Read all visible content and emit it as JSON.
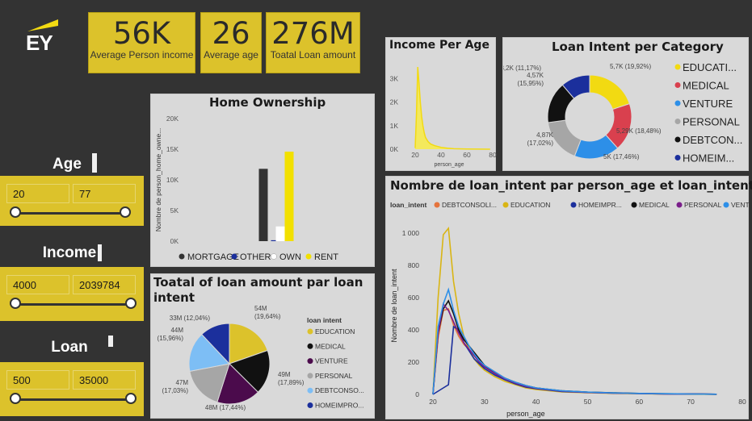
{
  "brand": {
    "logo": "EY",
    "accent": "#DCC22B"
  },
  "kpis": [
    {
      "value": "56K",
      "label": "Average Person income"
    },
    {
      "value": "26",
      "label": "Average age"
    },
    {
      "value": "276M",
      "label": "Toatal Loan amount"
    }
  ],
  "slicers": {
    "age": {
      "label": "Age",
      "min": "20",
      "max": "77"
    },
    "income": {
      "label": "Income",
      "min": "4000",
      "max": "2039784"
    },
    "loan": {
      "label": "Loan",
      "min": "500",
      "max": "35000"
    }
  },
  "colors": {
    "EDUCATION": "#F2DA12",
    "MEDICAL": "#D9404E",
    "VENTURE": "#2D8FE8",
    "PERSONAL": "#A6A6A6",
    "DEBTCONSOLIDATION": "#111111",
    "HOMEIMPROVEMENT": "#1B2F9C",
    "pie_EDUCATION": "#DCC22B",
    "pie_MEDICAL": "#111111",
    "pie_VENTURE": "#4B0B4C",
    "pie_PERSONAL": "#A6A6A6",
    "pie_DEBTCONSOLIDATION": "#7DBEF5",
    "pie_HOMEIMPROVEMENT": "#1B2F9C",
    "line_DEBTCONSOLIDATION": "#E5743D",
    "line_EDUCATION": "#D9B514",
    "line_HOMEIMPROVEMENT": "#1B2F9C",
    "line_MEDICAL": "#111111",
    "line_PERSONAL": "#7A1E8A",
    "line_VENTURE": "#2D8FE8"
  },
  "chart_data": [
    {
      "id": "home_ownership",
      "type": "bar",
      "title": "Home Ownership",
      "ylabel": "Nombre de person_home_owne...",
      "xlabel": "",
      "ylim": [
        0,
        20000
      ],
      "yticks": [
        "0K",
        "5K",
        "10K",
        "15K",
        "20K"
      ],
      "categories": [
        "MORTGAGE",
        "OTHER",
        "OWN",
        "RENT"
      ],
      "values": [
        11800,
        150,
        2400,
        14600
      ],
      "legend": [
        "MORTGAGE",
        "OTHER",
        "OWN",
        "RENT"
      ],
      "legend_colors": [
        "#333333",
        "#1B2F9C",
        "#ffffff",
        "#F2E000"
      ]
    },
    {
      "id": "income_per_age",
      "type": "area",
      "title": "Income Per Age",
      "xlabel": "person_age",
      "ylabel": "",
      "xlim": [
        15,
        80
      ],
      "ylim": [
        0,
        3500
      ],
      "yticks": [
        "0K",
        "1K",
        "2K",
        "3K"
      ],
      "xticks": [
        "20",
        "40",
        "60",
        "80"
      ],
      "x": [
        20,
        21,
        22,
        23,
        24,
        25,
        26,
        27,
        28,
        30,
        32,
        35,
        40,
        45,
        50,
        60,
        70,
        78
      ],
      "y": [
        50,
        1500,
        3500,
        2800,
        2000,
        1400,
        1000,
        700,
        500,
        320,
        220,
        150,
        80,
        40,
        20,
        8,
        3,
        0
      ]
    },
    {
      "id": "loan_intent_per_category",
      "type": "pie",
      "subtype": "donut",
      "title": "Loan Intent per Category",
      "labels": [
        "EDUCATION",
        "MEDICAL",
        "VENTURE",
        "PERSONAL",
        "DEBTCONSOLIDATION",
        "HOMEIMPROVEMENT"
      ],
      "legend_labels": [
        "EDUCATI...",
        "MEDICAL",
        "VENTURE",
        "PERSONAL",
        "DEBTCON...",
        "HOMEIM..."
      ],
      "values": [
        5700,
        5290,
        5000,
        4870,
        4570,
        3200
      ],
      "data_labels": [
        "5,7K (19,92%)",
        "5,29K (18,48%)",
        "5K (17,46%)",
        "4,87K (17,02%)",
        "4,57K (15,95%)",
        "3,2K (11,17%)"
      ]
    },
    {
      "id": "loan_amount_by_intent",
      "type": "pie",
      "title": "Toatal of loan amount par loan intent",
      "legend_title": "loan intent",
      "labels": [
        "EDUCATION",
        "MEDICAL",
        "VENTURE",
        "PERSONAL",
        "DEBTCONSOLIDATION",
        "HOMEIMPROVEMENT"
      ],
      "legend_labels": [
        "EDUCATION",
        "MEDICAL",
        "VENTURE",
        "PERSONAL",
        "DEBTCONSO...",
        "HOMEIMPRO..."
      ],
      "values": [
        54,
        49,
        48,
        47,
        44,
        33
      ],
      "data_labels": [
        "54M (19,64%)",
        "49M (17,89%)",
        "48M (17,44%)",
        "47M (17,03%)",
        "44M (15,96%)",
        "33M (12,04%)"
      ]
    },
    {
      "id": "loan_intent_by_age",
      "type": "line",
      "title": "Nombre de loan_intent par person_age et loan_intent",
      "legend_title": "loan_intent",
      "xlabel": "person_age",
      "ylabel": "Nombre de loan_intent",
      "xlim": [
        20,
        80
      ],
      "ylim": [
        0,
        1100
      ],
      "xticks": [
        "20",
        "30",
        "40",
        "50",
        "60",
        "70",
        "80"
      ],
      "yticks": [
        "0",
        "200",
        "400",
        "600",
        "800",
        "1 000"
      ],
      "x": [
        20,
        21,
        22,
        23,
        24,
        25,
        26,
        27,
        28,
        29,
        30,
        32,
        34,
        36,
        38,
        40,
        45,
        50,
        55,
        60,
        65,
        70,
        75
      ],
      "series": [
        {
          "name": "DEBTCONSOLI...",
          "key": "DEBTCONSOLIDATION",
          "values": [
            0,
            350,
            520,
            530,
            430,
            360,
            310,
            280,
            240,
            210,
            180,
            140,
            100,
            70,
            50,
            40,
            20,
            12,
            8,
            5,
            3,
            2,
            1
          ]
        },
        {
          "name": "EDUCATION",
          "key": "EDUCATION",
          "values": [
            0,
            600,
            990,
            1030,
            700,
            500,
            360,
            280,
            220,
            180,
            150,
            110,
            80,
            60,
            40,
            30,
            15,
            10,
            6,
            4,
            2,
            1,
            0
          ]
        },
        {
          "name": "HOMEIMPR...",
          "key": "HOMEIMPROVEMENT",
          "values": [
            0,
            20,
            40,
            60,
            420,
            400,
            320,
            270,
            220,
            190,
            160,
            120,
            90,
            65,
            45,
            35,
            18,
            12,
            8,
            5,
            3,
            2,
            1
          ]
        },
        {
          "name": "MEDICAL",
          "key": "MEDICAL",
          "values": [
            0,
            380,
            530,
            580,
            500,
            400,
            340,
            300,
            260,
            220,
            180,
            130,
            100,
            75,
            55,
            40,
            22,
            14,
            10,
            6,
            4,
            3,
            1
          ]
        },
        {
          "name": "PERSONAL",
          "key": "PERSONAL",
          "values": [
            0,
            380,
            560,
            520,
            450,
            380,
            320,
            280,
            240,
            200,
            170,
            130,
            95,
            70,
            50,
            38,
            20,
            12,
            8,
            5,
            3,
            2,
            1
          ]
        },
        {
          "name": "VENTURE",
          "key": "VENTURE",
          "values": [
            0,
            420,
            560,
            650,
            520,
            420,
            360,
            300,
            250,
            210,
            180,
            140,
            100,
            75,
            55,
            40,
            22,
            14,
            9,
            6,
            4,
            2,
            1
          ]
        }
      ]
    }
  ]
}
